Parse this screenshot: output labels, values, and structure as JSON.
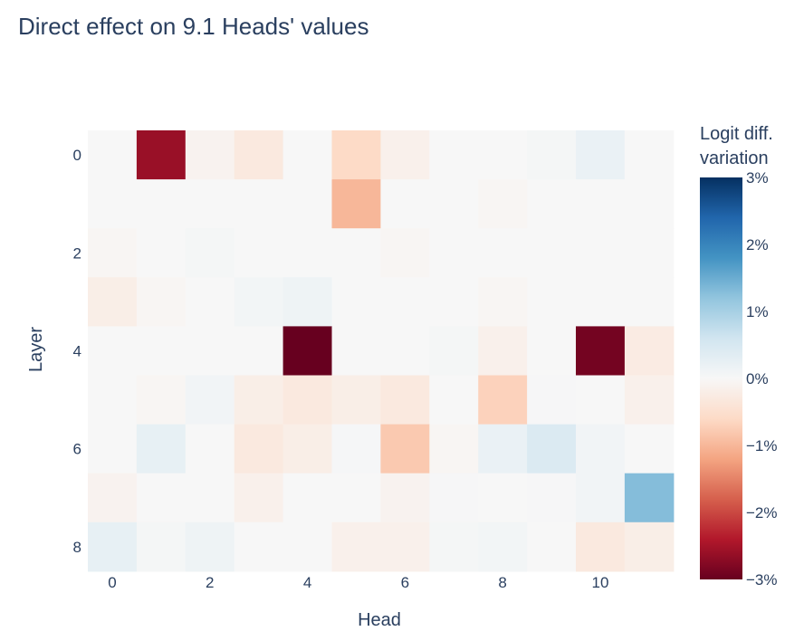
{
  "chart_data": {
    "type": "heatmap",
    "title": "Direct effect on 9.1 Heads' values",
    "xlabel": "Head",
    "ylabel": "Layer",
    "x_ticks": [
      0,
      2,
      4,
      6,
      8,
      10
    ],
    "y_ticks": [
      0,
      2,
      4,
      6,
      8
    ],
    "x": [
      0,
      1,
      2,
      3,
      4,
      5,
      6,
      7,
      8,
      9,
      10,
      11
    ],
    "y": [
      0,
      1,
      2,
      3,
      4,
      5,
      6,
      7,
      8
    ],
    "z_unit": "%",
    "values": [
      [
        0.0,
        -2.6,
        -0.1,
        -0.3,
        0.0,
        -0.6,
        -0.15,
        0.0,
        0.0,
        0.05,
        0.2,
        0.0
      ],
      [
        0.0,
        0.0,
        0.0,
        0.0,
        0.0,
        -1.0,
        0.0,
        0.0,
        -0.05,
        0.0,
        0.0,
        0.0
      ],
      [
        -0.05,
        0.0,
        0.05,
        0.0,
        0.0,
        0.0,
        -0.05,
        0.0,
        0.0,
        0.0,
        0.0,
        0.0
      ],
      [
        -0.2,
        -0.05,
        0.0,
        0.08,
        0.15,
        0.0,
        0.0,
        0.0,
        -0.05,
        0.0,
        0.0,
        0.0
      ],
      [
        0.0,
        0.0,
        0.0,
        0.0,
        -3.0,
        0.0,
        0.0,
        0.05,
        -0.15,
        0.0,
        -2.9,
        -0.25
      ],
      [
        0.0,
        -0.05,
        0.1,
        -0.2,
        -0.3,
        -0.2,
        -0.3,
        0.0,
        -0.7,
        0.02,
        0.0,
        -0.15
      ],
      [
        0.0,
        0.25,
        0.0,
        -0.3,
        -0.2,
        0.03,
        -0.8,
        -0.05,
        0.2,
        0.45,
        0.1,
        0.0
      ],
      [
        -0.1,
        0.0,
        0.0,
        -0.15,
        0.0,
        0.0,
        -0.1,
        0.02,
        0.0,
        0.02,
        0.1,
        1.3
      ],
      [
        0.25,
        0.05,
        0.15,
        0.0,
        0.0,
        -0.15,
        -0.15,
        0.05,
        0.08,
        0.0,
        -0.3,
        -0.2
      ]
    ],
    "zlim": [
      -3,
      3
    ],
    "colorbar": {
      "title_line1": "Logit diff.",
      "title_line2": "variation",
      "ticks": [
        3,
        2,
        1,
        0,
        -1,
        -2,
        -3
      ],
      "tick_labels": [
        "3%",
        "2%",
        "1%",
        "0%",
        "−1%",
        "−2%",
        "−3%"
      ]
    },
    "colorscale": "RdBu",
    "grid": false
  }
}
